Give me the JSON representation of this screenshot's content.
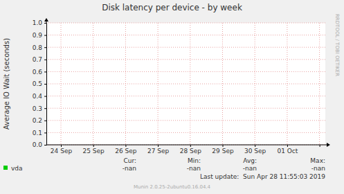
{
  "chart_data": {
    "type": "line",
    "title": "Disk latency per device - by week",
    "y_label": "Average IO Wait (seconds)",
    "categories": [
      "24 Sep",
      "25 Sep",
      "26 Sep",
      "27 Sep",
      "28 Sep",
      "29 Sep",
      "30 Sep",
      "01 Oct",
      null
    ],
    "series": [
      {
        "name": "vda",
        "color": "#00cc00",
        "values": [
          null,
          null,
          null,
          null,
          null,
          null,
          null,
          null,
          null
        ],
        "cur": "-nan",
        "min": "-nan",
        "avg": "-nan",
        "max": "-nan"
      }
    ],
    "stats_headers": {
      "cur": "Cur:",
      "min": "Min:",
      "avg": "Avg:",
      "max": "Max:"
    },
    "ylim": [
      0,
      1
    ],
    "yticks": [
      {
        "value": 0,
        "label": "0.0"
      },
      0.1,
      0.2,
      0.3,
      0.4,
      0.5,
      0.6,
      0.7,
      0.8,
      0.9,
      {
        "value": 1,
        "label": "1.0"
      }
    ],
    "grid": true,
    "footer": "Last update:  Sun Apr 28 11:55:03 2019",
    "credit": "Munin 2.0.25-2ubuntu0.16.04.4",
    "watermark": "RRDTOOL / TOBI OETIKER"
  }
}
